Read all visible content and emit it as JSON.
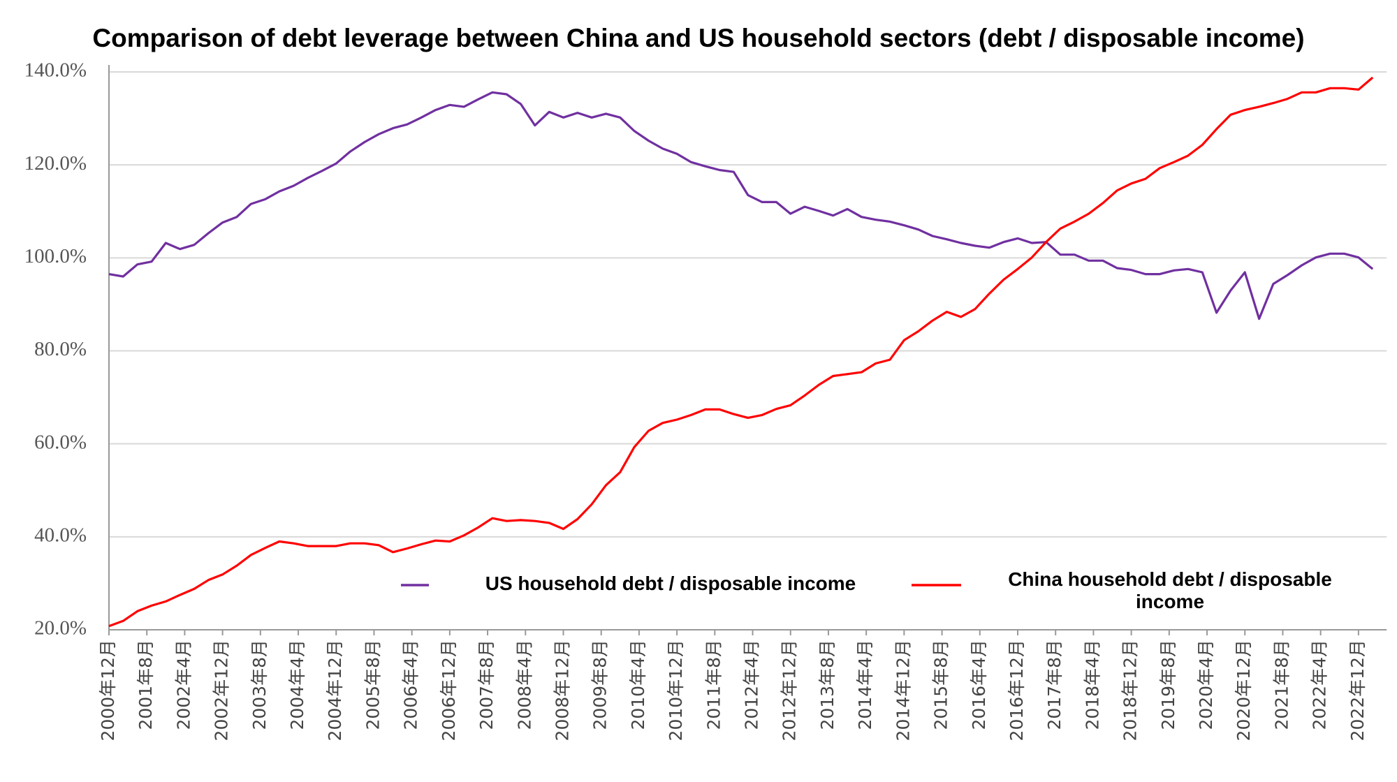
{
  "chart_data": {
    "type": "line",
    "title": "Comparison of debt leverage between China and US household sectors (debt / disposable income)",
    "x": [
      "2000-12",
      "2001-03",
      "2001-06",
      "2001-09",
      "2001-12",
      "2002-03",
      "2002-06",
      "2002-09",
      "2002-12",
      "2003-03",
      "2003-06",
      "2003-09",
      "2003-12",
      "2004-03",
      "2004-06",
      "2004-09",
      "2004-12",
      "2005-03",
      "2005-06",
      "2005-09",
      "2005-12",
      "2006-03",
      "2006-06",
      "2006-09",
      "2006-12",
      "2007-03",
      "2007-06",
      "2007-09",
      "2007-12",
      "2008-03",
      "2008-06",
      "2008-09",
      "2008-12",
      "2009-03",
      "2009-06",
      "2009-09",
      "2009-12",
      "2010-03",
      "2010-06",
      "2010-09",
      "2010-12",
      "2011-03",
      "2011-06",
      "2011-09",
      "2011-12",
      "2012-03",
      "2012-06",
      "2012-09",
      "2012-12",
      "2013-03",
      "2013-06",
      "2013-09",
      "2013-12",
      "2014-03",
      "2014-06",
      "2014-09",
      "2014-12",
      "2015-03",
      "2015-06",
      "2015-09",
      "2015-12",
      "2016-03",
      "2016-06",
      "2016-09",
      "2016-12",
      "2017-03",
      "2017-06",
      "2017-09",
      "2017-12",
      "2018-03",
      "2018-06",
      "2018-09",
      "2018-12",
      "2019-03",
      "2019-06",
      "2019-09",
      "2019-12",
      "2020-03",
      "2020-06",
      "2020-09",
      "2020-12",
      "2021-03",
      "2021-06",
      "2021-09",
      "2021-12",
      "2022-03",
      "2022-06",
      "2022-09",
      "2022-12",
      "2023-03"
    ],
    "series": [
      {
        "name": "US household debt / disposable income",
        "color": "#7030a0",
        "values": [
          96.5,
          96,
          98.6,
          99.2,
          103.2,
          101.9,
          102.8,
          105.3,
          107.6,
          108.8,
          111.6,
          112.6,
          114.3,
          115.5,
          117.2,
          118.7,
          120.3,
          122.9,
          124.9,
          126.6,
          127.9,
          128.7,
          130.2,
          131.8,
          132.9,
          132.5,
          134.1,
          135.6,
          135.2,
          133.1,
          128.5,
          131.4,
          130.2,
          131.2,
          130.2,
          131,
          130.2,
          127.3,
          125.2,
          123.5,
          122.4,
          120.6,
          119.7,
          118.9,
          118.5,
          113.5,
          112,
          112,
          109.5,
          111,
          110.1,
          109.1,
          110.5,
          108.8,
          108.2,
          107.8,
          107,
          106.1,
          104.7,
          104,
          103.2,
          102.6,
          102.2,
          103.4,
          104.2,
          103.2,
          103.4,
          100.7,
          100.7,
          99.4,
          99.4,
          97.8,
          97.4,
          96.5,
          96.5,
          97.3,
          97.6,
          96.9,
          88.2,
          93,
          96.9,
          86.9,
          94.4,
          96.3,
          98.4,
          100.1,
          100.9,
          100.9,
          100.1,
          97.6
        ]
      },
      {
        "name": "China household debt / disposable income",
        "color": "#ff0000",
        "values": [
          20.8,
          21.9,
          24,
          25.2,
          26.1,
          27.5,
          28.8,
          30.7,
          31.9,
          33.8,
          36.1,
          37.6,
          39,
          38.6,
          38,
          38,
          38,
          38.6,
          38.6,
          38.2,
          36.7,
          37.5,
          38.4,
          39.2,
          39,
          40.3,
          42,
          44,
          43.4,
          43.6,
          43.4,
          43,
          41.7,
          43.8,
          47,
          51.1,
          53.9,
          59.3,
          62.8,
          64.5,
          65.2,
          66.2,
          67.4,
          67.4,
          66.4,
          65.6,
          66.2,
          67.5,
          68.3,
          70.4,
          72.7,
          74.6,
          75,
          75.4,
          77.3,
          78.1,
          82.3,
          84.2,
          86.5,
          88.4,
          87.3,
          89,
          92.3,
          95.3,
          97.6,
          100.1,
          103.4,
          106.3,
          107.8,
          109.5,
          111.8,
          114.5,
          116,
          117,
          119.3,
          120.6,
          122,
          124.3,
          127.7,
          130.8,
          131.8,
          132.5,
          133.3,
          134.2,
          135.6,
          135.6,
          136.5,
          136.5,
          136.2,
          138.8
        ]
      }
    ],
    "xticks": [
      {
        "value": "2000-12",
        "label": "2000年12月"
      },
      {
        "value": "2001-08",
        "label": "2001年8月"
      },
      {
        "value": "2002-04",
        "label": "2002年4月"
      },
      {
        "value": "2002-12",
        "label": "2002年12月"
      },
      {
        "value": "2003-08",
        "label": "2003年8月"
      },
      {
        "value": "2004-04",
        "label": "2004年4月"
      },
      {
        "value": "2004-12",
        "label": "2004年12月"
      },
      {
        "value": "2005-08",
        "label": "2005年8月"
      },
      {
        "value": "2006-04",
        "label": "2006年4月"
      },
      {
        "value": "2006-12",
        "label": "2006年12月"
      },
      {
        "value": "2007-08",
        "label": "2007年8月"
      },
      {
        "value": "2008-04",
        "label": "2008年4月"
      },
      {
        "value": "2008-12",
        "label": "2008年12月"
      },
      {
        "value": "2009-08",
        "label": "2009年8月"
      },
      {
        "value": "2010-04",
        "label": "2010年4月"
      },
      {
        "value": "2010-12",
        "label": "2010年12月"
      },
      {
        "value": "2011-08",
        "label": "2011年8月"
      },
      {
        "value": "2012-04",
        "label": "2012年4月"
      },
      {
        "value": "2012-12",
        "label": "2012年12月"
      },
      {
        "value": "2013-08",
        "label": "2013年8月"
      },
      {
        "value": "2014-04",
        "label": "2014年4月"
      },
      {
        "value": "2014-12",
        "label": "2014年12月"
      },
      {
        "value": "2015-08",
        "label": "2015年8月"
      },
      {
        "value": "2016-04",
        "label": "2016年4月"
      },
      {
        "value": "2016-12",
        "label": "2016年12月"
      },
      {
        "value": "2017-08",
        "label": "2017年8月"
      },
      {
        "value": "2018-04",
        "label": "2018年4月"
      },
      {
        "value": "2018-12",
        "label": "2018年12月"
      },
      {
        "value": "2019-08",
        "label": "2019年8月"
      },
      {
        "value": "2020-04",
        "label": "2020年4月"
      },
      {
        "value": "2020-12",
        "label": "2020年12月"
      },
      {
        "value": "2021-08",
        "label": "2021年8月"
      },
      {
        "value": "2022-04",
        "label": "2022年4月"
      },
      {
        "value": "2022-12",
        "label": "2022年12月"
      }
    ],
    "ylim": [
      20,
      140
    ],
    "yticks": [
      {
        "value": 20,
        "label": "20.0%"
      },
      {
        "value": 40,
        "label": "40.0%"
      },
      {
        "value": 60,
        "label": "60.0%"
      },
      {
        "value": 80,
        "label": "80.0%"
      },
      {
        "value": 100,
        "label": "100.0%"
      },
      {
        "value": 120,
        "label": "120.0%"
      },
      {
        "value": 140,
        "label": "140.0%"
      }
    ],
    "grid": true
  }
}
